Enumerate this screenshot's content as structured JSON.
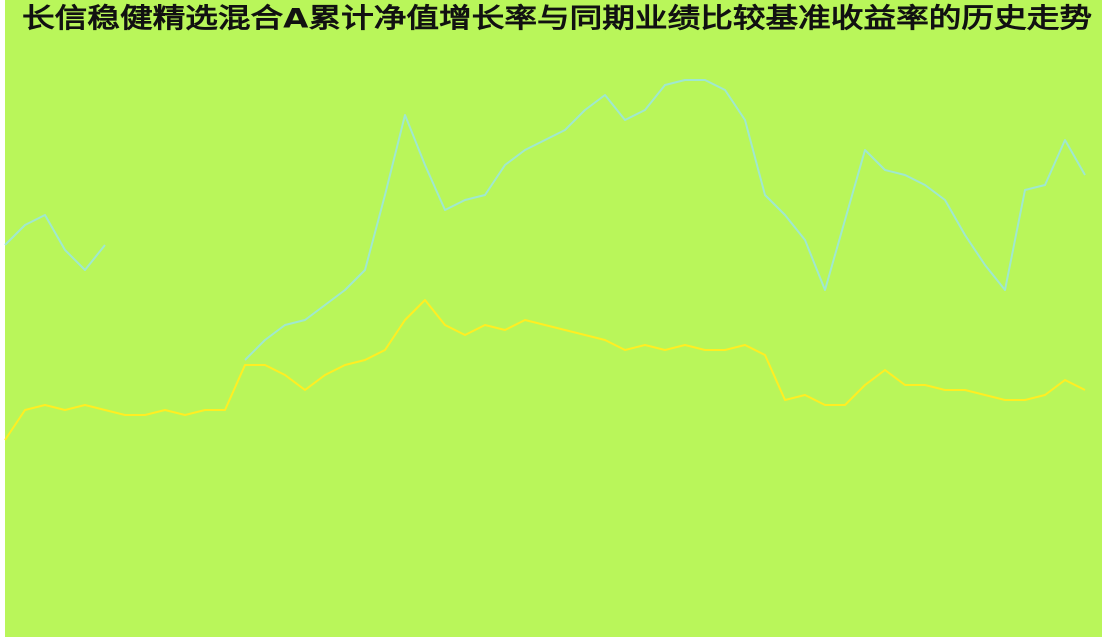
{
  "chart_data": {
    "type": "line",
    "title": "长信稳健精选混合A累计净值增长率与同期业绩比较基准收益率的历史走势",
    "ylim": [
      0,
      119
    ],
    "series": [
      {
        "color": "#9fe8cf",
        "values": [
          78,
          82,
          84,
          77,
          73,
          78,
          null,
          null,
          null,
          null,
          null,
          null,
          55,
          59,
          62,
          63,
          66,
          69,
          73,
          88,
          104,
          94,
          85,
          87,
          88,
          94,
          97,
          99,
          101,
          105,
          108,
          103,
          105,
          110,
          111,
          111,
          109,
          103,
          88,
          84,
          79,
          69,
          83,
          97,
          93,
          92,
          90,
          87,
          80,
          74,
          69,
          89,
          90,
          99,
          92
        ]
      },
      {
        "color": "#ffee22",
        "values": [
          39,
          45,
          46,
          45,
          46,
          45,
          44,
          44,
          45,
          44,
          45,
          45,
          54,
          54,
          52,
          49,
          52,
          54,
          55,
          57,
          63,
          67,
          62,
          60,
          62,
          61,
          63,
          62,
          61,
          60,
          59,
          57,
          58,
          57,
          58,
          57,
          57,
          58,
          56,
          47,
          48,
          46,
          46,
          50,
          53,
          50,
          50,
          49,
          49,
          48,
          47,
          47,
          48,
          51,
          49
        ]
      }
    ]
  }
}
